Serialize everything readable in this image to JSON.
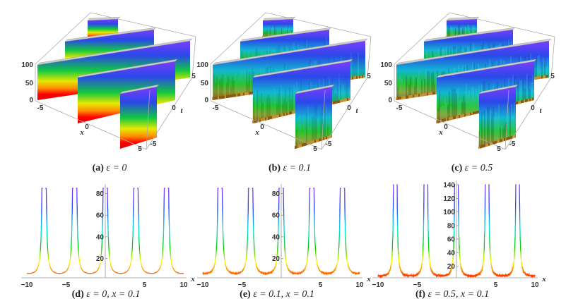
{
  "captions": [
    {
      "label": "(a)",
      "text": "ε = 0"
    },
    {
      "label": "(b)",
      "text": "ε = 0.1"
    },
    {
      "label": "(c)",
      "text": "ε = 0.5"
    },
    {
      "label": "(d)",
      "text": "ε = 0,  x = 0.1"
    },
    {
      "label": "(e)",
      "text": "ε = 0.1,  x = 0.1"
    },
    {
      "label": "(f)",
      "text": "ε = 0.5,  x = 0.1"
    }
  ],
  "colormap": [
    "#ff0000",
    "#ff8c00",
    "#ffff00",
    "#00c800",
    "#00e0e0",
    "#2040ff",
    "#8040ff"
  ],
  "chart_data": [
    {
      "type": "surface",
      "epsilon": 0,
      "xlabel": "x",
      "ylabel": "t",
      "xticks": [
        "-5",
        "0",
        "5"
      ],
      "yticks": [
        "-5",
        "0",
        "5"
      ],
      "zticks": [
        "0",
        "50",
        "100"
      ],
      "xlim": [
        -5,
        5
      ],
      "ylim": [
        -5,
        5
      ],
      "zlim": [
        0,
        100
      ],
      "noise": false
    },
    {
      "type": "surface",
      "epsilon": 0.1,
      "xlabel": "x",
      "ylabel": "t",
      "xticks": [
        "-5",
        "0",
        "5"
      ],
      "yticks": [
        "-5",
        "0",
        "5"
      ],
      "zticks": [
        "0",
        "50",
        "100"
      ],
      "xlim": [
        -5,
        5
      ],
      "ylim": [
        -5,
        5
      ],
      "zlim": [
        0,
        100
      ],
      "noise": true
    },
    {
      "type": "surface",
      "epsilon": 0.5,
      "xlabel": "x",
      "ylabel": "t",
      "xticks": [
        "-5",
        "0",
        "5"
      ],
      "yticks": [
        "-5",
        "0",
        "5"
      ],
      "zticks": [
        "0",
        "50",
        "100"
      ],
      "xlim": [
        -5,
        5
      ],
      "ylim": [
        -5,
        5
      ],
      "zlim": [
        0,
        100
      ],
      "noise": true
    },
    {
      "type": "line",
      "epsilon": 0,
      "xlabel": "x",
      "xlim": [
        -10,
        10
      ],
      "ylim": [
        0,
        85
      ],
      "xticks": [
        -10,
        -5,
        5,
        10
      ],
      "yticks": [
        20,
        40,
        60,
        80
      ],
      "peaks_x": [
        -7.8,
        -3.9,
        0,
        3.9,
        7.8
      ],
      "baseline": 3
    },
    {
      "type": "line",
      "epsilon": 0.1,
      "xlabel": "x",
      "xlim": [
        -10,
        10
      ],
      "ylim": [
        0,
        85
      ],
      "xticks": [
        -10,
        -5,
        5,
        10
      ],
      "yticks": [
        20,
        40,
        60,
        80
      ],
      "peaks_x": [
        -7.8,
        -3.9,
        0,
        3.9,
        7.8
      ],
      "baseline": 3
    },
    {
      "type": "line",
      "epsilon": 0.5,
      "xlabel": "x",
      "xlim": [
        -10,
        10
      ],
      "ylim": [
        0,
        140
      ],
      "xticks": [
        -10,
        -5,
        5,
        10
      ],
      "yticks": [
        20,
        40,
        60,
        80,
        100,
        120,
        140
      ],
      "peaks_x": [
        -7.8,
        -3.9,
        0,
        3.9,
        7.8
      ],
      "baseline": 3
    }
  ]
}
